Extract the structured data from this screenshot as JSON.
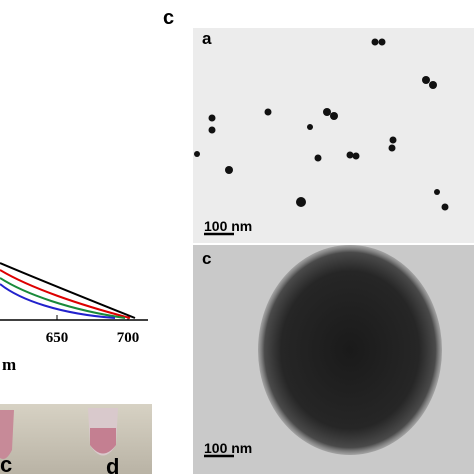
{
  "figure": {
    "panel_label": "c",
    "left_plot": {
      "x_ticks": [
        650,
        700
      ],
      "x_label_fragment": "m"
    },
    "photo_labels": [
      "c",
      "d"
    ],
    "tem_top": {
      "label": "a",
      "scale_bar": "100 nm"
    },
    "tem_bottom": {
      "label": "c",
      "scale_bar": "100 nm"
    }
  }
}
